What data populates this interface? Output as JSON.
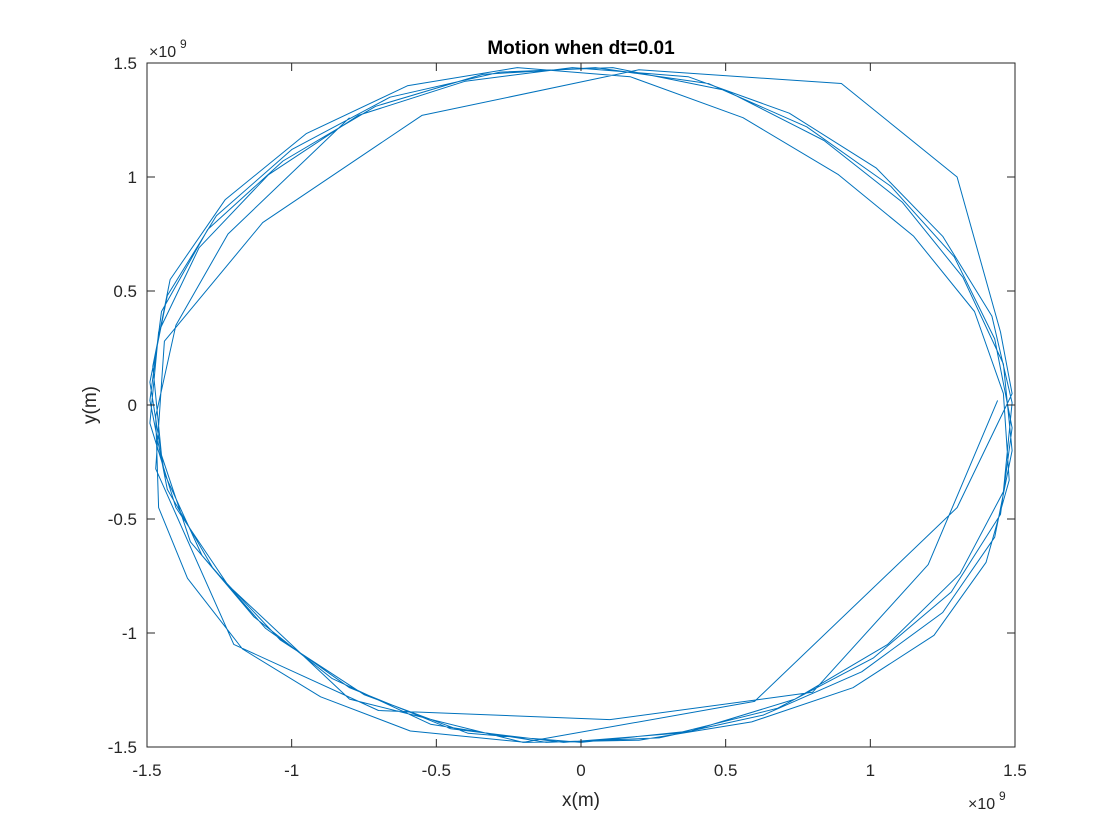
{
  "chart_data": {
    "type": "line",
    "title": "Motion when dt=0.01",
    "xlabel": "x(m)",
    "ylabel": "y(m)",
    "x_exponent": {
      "base": "×10",
      "power": "9"
    },
    "y_exponent": {
      "base": "×10",
      "power": "9"
    },
    "xlim": [
      -1.5,
      1.5
    ],
    "ylim": [
      -1.5,
      1.5
    ],
    "xticks": [
      -1.5,
      -1,
      -0.5,
      0,
      0.5,
      1,
      1.5
    ],
    "yticks": [
      -1.5,
      -1,
      -0.5,
      0,
      0.5,
      1,
      1.5
    ],
    "xtick_labels": [
      "-1.5",
      "-1",
      "-0.5",
      "0",
      "0.5",
      "1",
      "1.5"
    ],
    "ytick_labels": [
      "-1.5",
      "-1",
      "-0.5",
      "0",
      "0.5",
      "1",
      "1.5"
    ],
    "grid": false,
    "line_color": "#0072BD",
    "series": [
      {
        "x": [
          -0.8,
          -1.22,
          -1.4,
          -1.47,
          -1.46,
          -1.36,
          -1.17,
          -0.9,
          -0.59,
          -0.19,
          0.2,
          0.59,
          0.94,
          1.22,
          1.4,
          1.48,
          1.46,
          1.36,
          1.15,
          0.89,
          0.56,
          0.17,
          -0.22,
          -0.6,
          -0.95,
          -1.23,
          -1.42,
          -1.48,
          -1.45,
          -1.35,
          -1.13,
          -0.86,
          -0.52,
          -0.12,
          0.27,
          0.63,
          0.97,
          1.25,
          1.43,
          1.49,
          1.46,
          1.32,
          1.11,
          0.84,
          0.5,
          0.11,
          -0.28,
          -0.66,
          -1.0,
          -1.26,
          -1.43,
          -1.49,
          -1.44,
          -1.31,
          -1.09,
          -0.8,
          -0.45,
          -0.06,
          0.33,
          0.68,
          1.01,
          1.28,
          1.45,
          1.49,
          1.43,
          1.29,
          1.07,
          0.78,
          0.44,
          0.05,
          -0.34,
          -0.71,
          -1.03,
          -1.29,
          -1.45,
          -1.49,
          -1.43,
          -1.27,
          -1.04,
          -0.75,
          -0.39,
          0.0,
          0.38,
          0.74,
          1.06,
          1.31,
          1.46,
          1.49,
          1.42,
          1.25,
          1.02,
          0.72,
          0.37,
          -0.03,
          -0.4,
          -0.77,
          -1.08,
          -1.32,
          -1.46,
          -1.49,
          -1.4,
          -1.22,
          -0.8,
          -0.2,
          0.6,
          1.3,
          1.49,
          1.45,
          1.3,
          0.9,
          0.2,
          -0.55,
          -1.1,
          -1.44,
          -1.47,
          -1.2,
          -0.7,
          0.1,
          0.8,
          1.2,
          1.44
        ],
        "y": [
          1.26,
          0.75,
          0.35,
          -0.05,
          -0.45,
          -0.76,
          -1.07,
          -1.28,
          -1.43,
          -1.48,
          -1.47,
          -1.39,
          -1.24,
          -1.01,
          -0.69,
          -0.33,
          0.05,
          0.41,
          0.74,
          1.01,
          1.26,
          1.44,
          1.48,
          1.4,
          1.19,
          0.9,
          0.55,
          0.17,
          -0.22,
          -0.6,
          -0.93,
          -1.2,
          -1.4,
          -1.48,
          -1.46,
          -1.36,
          -1.17,
          -0.91,
          -0.58,
          -0.2,
          0.18,
          0.56,
          0.89,
          1.16,
          1.38,
          1.48,
          1.46,
          1.35,
          1.12,
          0.83,
          0.48,
          0.1,
          -0.3,
          -0.66,
          -0.98,
          -1.24,
          -1.42,
          -1.48,
          -1.44,
          -1.33,
          -1.11,
          -0.82,
          -0.48,
          -0.1,
          0.29,
          0.65,
          0.96,
          1.22,
          1.41,
          1.48,
          1.45,
          1.31,
          1.07,
          0.77,
          0.41,
          0.02,
          -0.37,
          -0.72,
          -1.03,
          -1.27,
          -1.44,
          -1.48,
          -1.43,
          -1.29,
          -1.05,
          -0.74,
          -0.38,
          0.01,
          0.39,
          0.74,
          1.04,
          1.28,
          1.44,
          1.48,
          1.42,
          1.27,
          1.01,
          0.69,
          0.32,
          -0.08,
          -0.45,
          -0.79,
          -1.29,
          -1.48,
          -1.3,
          -0.45,
          0.05,
          0.32,
          1.0,
          1.41,
          1.47,
          1.27,
          0.8,
          0.28,
          -0.28,
          -1.05,
          -1.34,
          -1.38,
          -1.26,
          -0.7,
          0.02
        ]
      }
    ]
  }
}
